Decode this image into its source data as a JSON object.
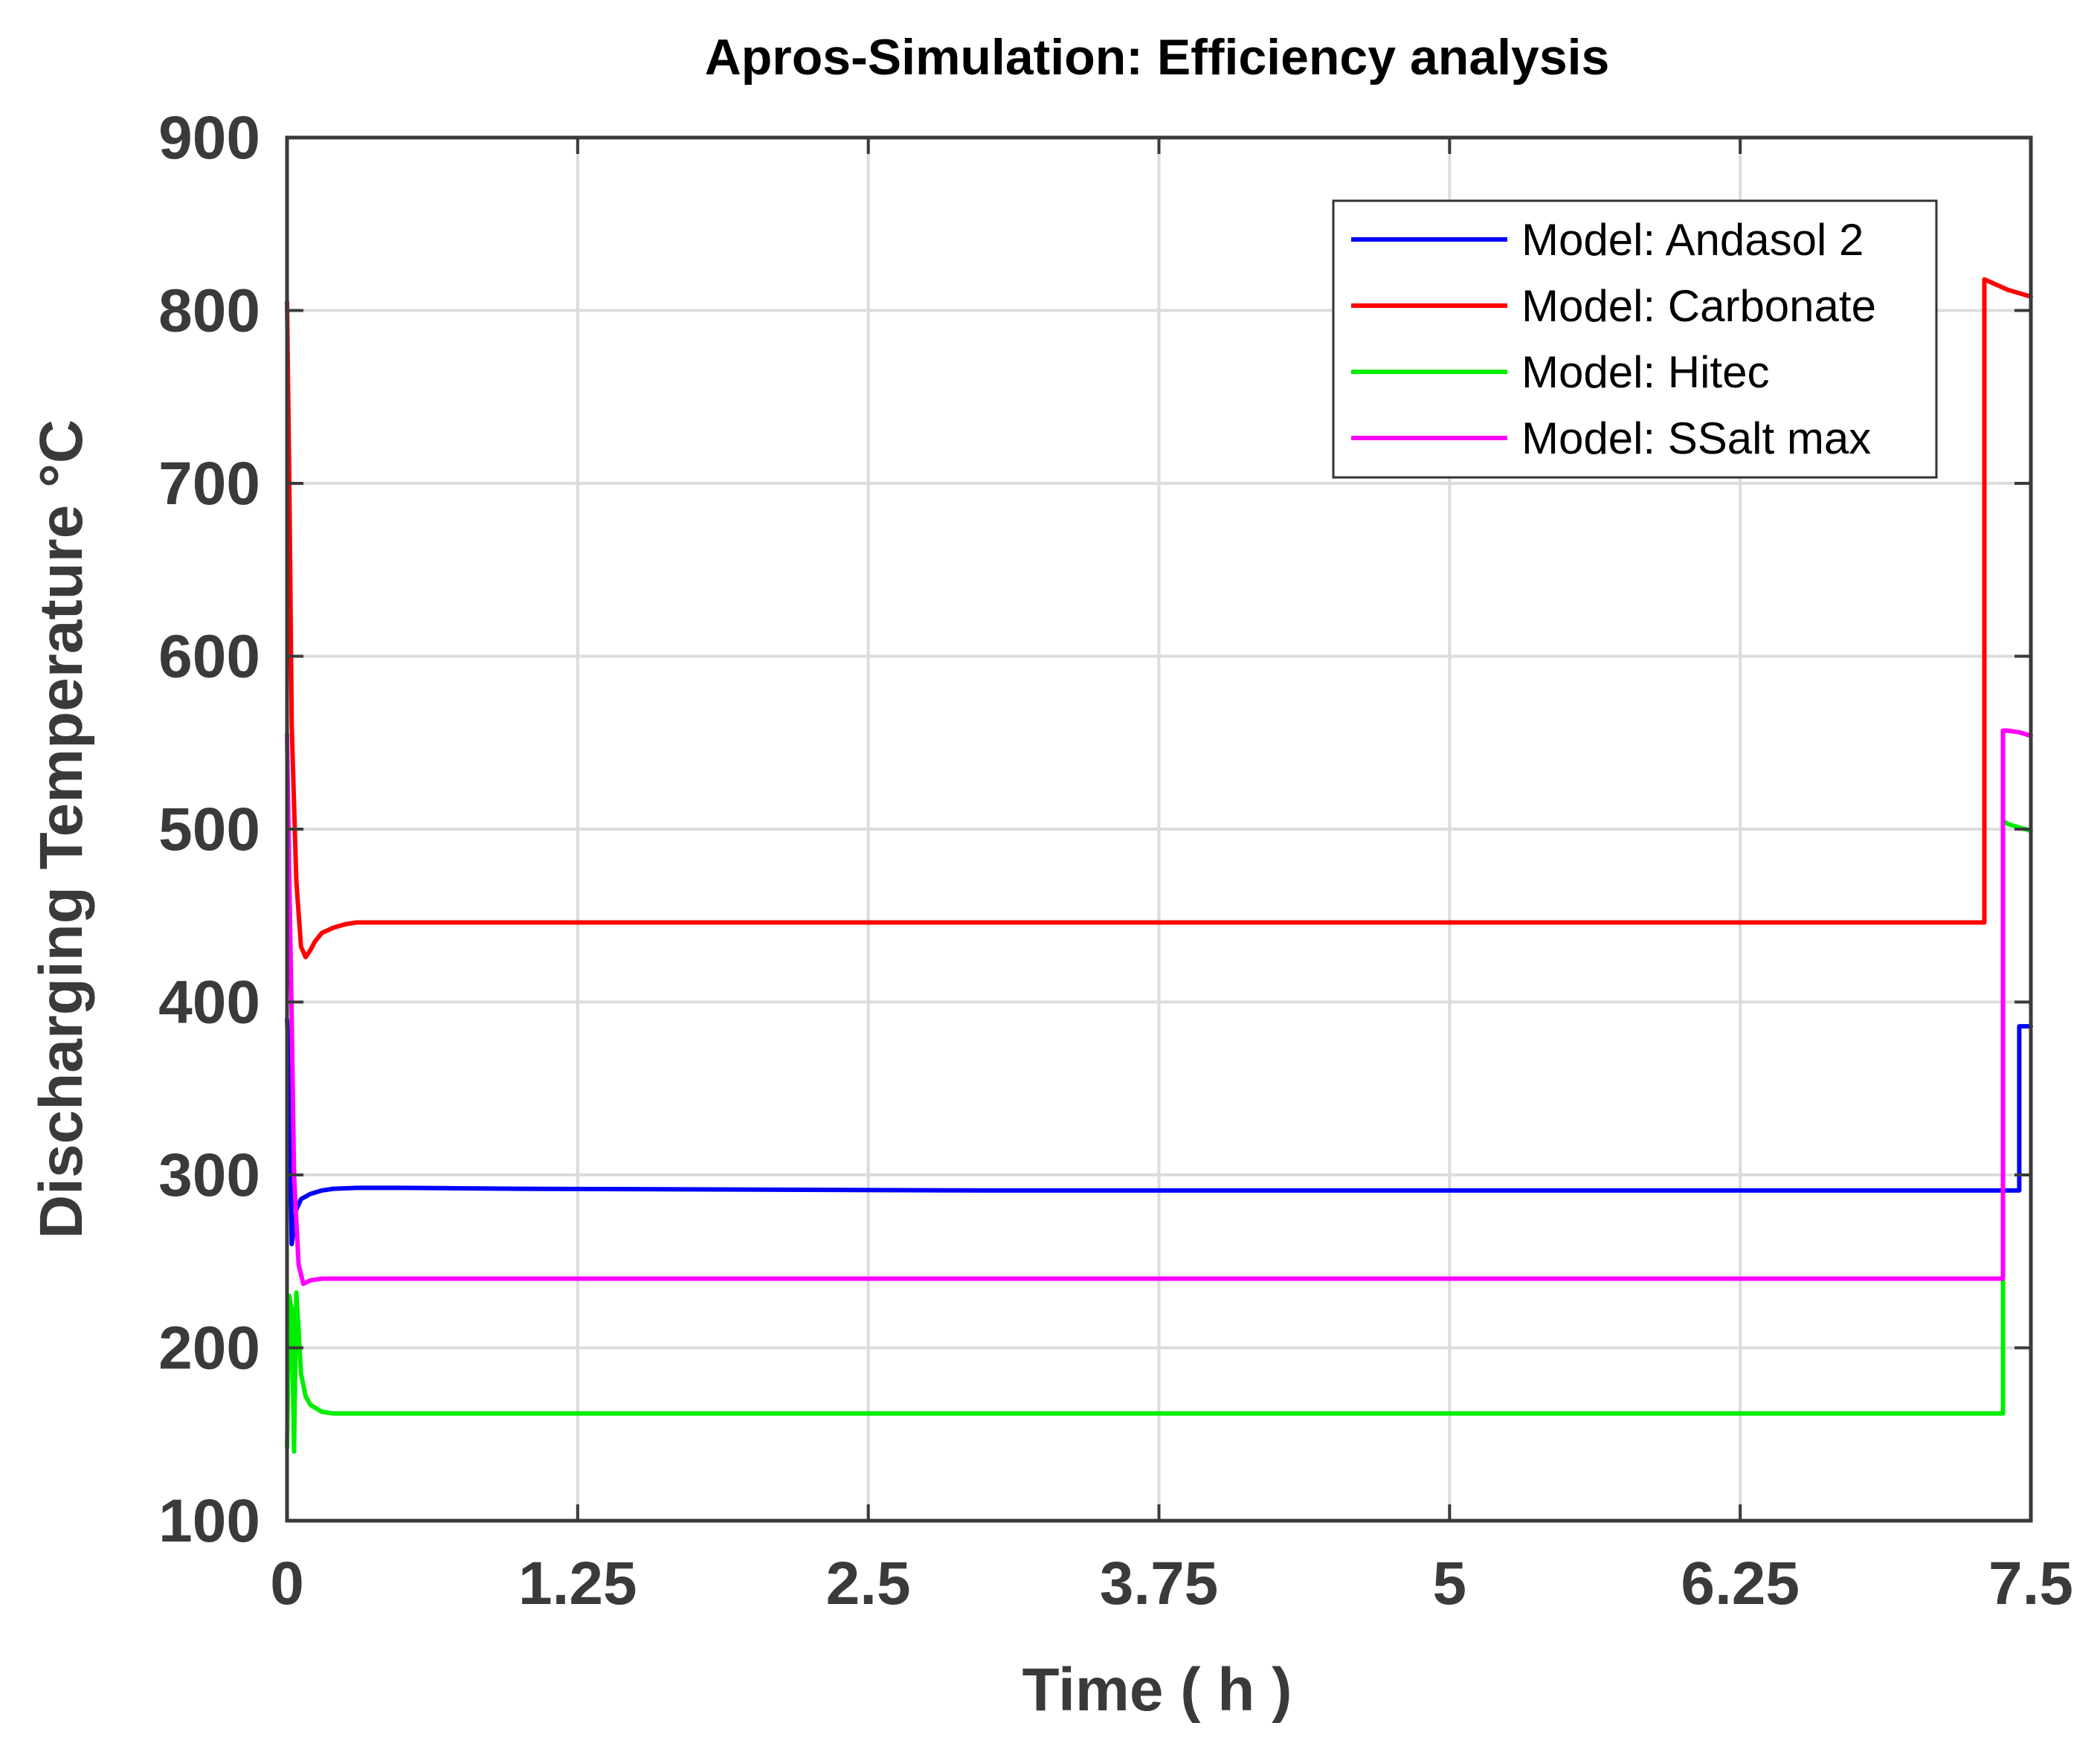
{
  "chart_data": {
    "type": "line",
    "title": "Apros-Simulation: Efficiency analysis",
    "xlabel": "Time ( h )",
    "ylabel": "Discharging Temperature °C",
    "xlim": [
      0,
      7.5
    ],
    "ylim": [
      100,
      900
    ],
    "xticks": [
      0,
      1.25,
      2.5,
      3.75,
      5,
      6.25,
      7.5
    ],
    "xtick_labels": [
      "0",
      "1.25",
      "2.5",
      "3.75",
      "5",
      "6.25",
      "7.5"
    ],
    "yticks": [
      100,
      200,
      300,
      400,
      500,
      600,
      700,
      800,
      900
    ],
    "ytick_labels": [
      "100",
      "200",
      "300",
      "400",
      "500",
      "600",
      "700",
      "800",
      "900"
    ],
    "grid": true,
    "legend_position": "top-right",
    "series": [
      {
        "name": "Model: Andasol 2",
        "color": "#0000ff",
        "x": [
          0,
          0.01,
          0.02,
          0.04,
          0.06,
          0.1,
          0.15,
          0.2,
          0.3,
          0.5,
          1.0,
          3.0,
          6.0,
          7.4,
          7.4,
          7.45,
          7.45,
          7.5
        ],
        "y": [
          390,
          360,
          260,
          280,
          286,
          289,
          291,
          292,
          292.5,
          292.5,
          292,
          291,
          291,
          291,
          291,
          291,
          386,
          386
        ]
      },
      {
        "name": "Model: Carbonate",
        "color": "#ff0000",
        "x": [
          0,
          0.01,
          0.02,
          0.04,
          0.06,
          0.08,
          0.1,
          0.12,
          0.15,
          0.2,
          0.25,
          0.3,
          0.4,
          0.5,
          1.0,
          3.0,
          6.0,
          7.3,
          7.3,
          7.35,
          7.4,
          7.5
        ],
        "y": [
          805,
          700,
          560,
          470,
          432,
          426,
          430,
          435,
          440,
          443,
          445,
          446,
          446,
          446,
          446,
          446,
          446,
          446,
          818,
          815,
          812,
          808
        ]
      },
      {
        "name": "Model: Hitec",
        "color": "#00ee00",
        "x": [
          0,
          0.01,
          0.02,
          0.03,
          0.04,
          0.05,
          0.06,
          0.08,
          0.1,
          0.15,
          0.2,
          0.3,
          0.5,
          1.0,
          3.0,
          6.0,
          7.38,
          7.38,
          7.4,
          7.45,
          7.5
        ],
        "y": [
          142,
          230,
          222,
          140,
          232,
          210,
          185,
          172,
          167,
          163,
          162,
          162,
          162,
          162,
          162,
          162,
          162,
          505,
          503,
          501,
          499
        ]
      },
      {
        "name": "Model: SSalt max",
        "color": "#ff00ff",
        "x": [
          0,
          0.01,
          0.02,
          0.03,
          0.05,
          0.07,
          0.1,
          0.15,
          0.2,
          0.3,
          0.5,
          1.0,
          3.0,
          6.0,
          7.38,
          7.38,
          7.4,
          7.45,
          7.5
        ],
        "y": [
          555,
          470,
          390,
          300,
          248,
          237,
          239,
          240,
          240,
          240,
          240,
          240,
          240,
          240,
          240,
          557,
          557,
          556,
          554
        ]
      }
    ]
  }
}
